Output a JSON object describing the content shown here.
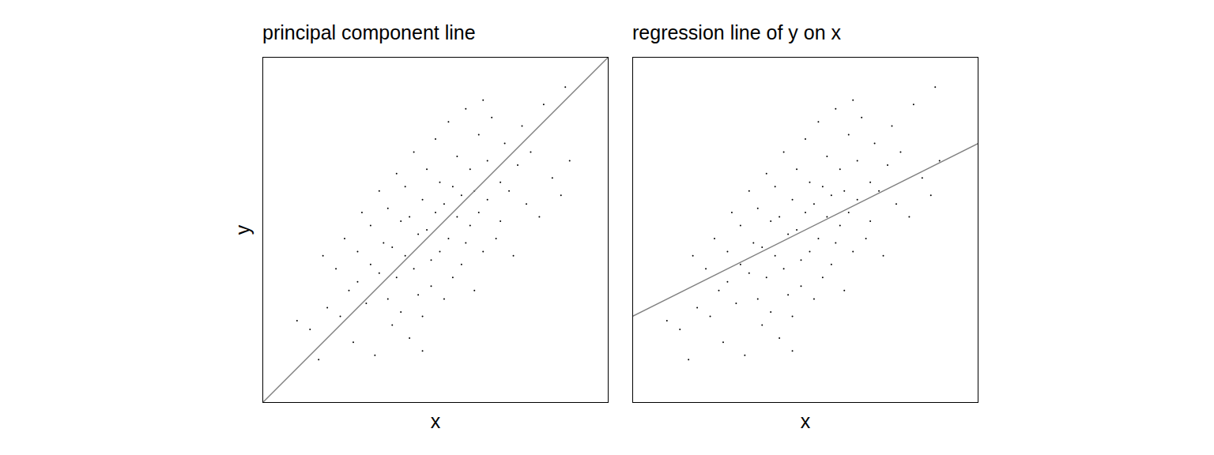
{
  "chart_data": [
    {
      "type": "scatter",
      "title": "principal component line",
      "x_label": "x",
      "y_label": "y",
      "xlim": [
        -4,
        4
      ],
      "ylim": [
        -4,
        4
      ],
      "tick_labels": false,
      "series": [
        {
          "type": "scatter",
          "color": "#000000",
          "x": [
            -3.2,
            -2.9,
            -2.6,
            -2.5,
            -2.3,
            -2.2,
            -2.1,
            -2.0,
            -1.9,
            -1.8,
            -1.8,
            -1.7,
            -1.6,
            -1.5,
            -1.5,
            -1.4,
            -1.3,
            -1.3,
            -1.2,
            -1.1,
            -1.1,
            -1.0,
            -1.0,
            -0.9,
            -0.9,
            -0.8,
            -0.8,
            -0.7,
            -0.7,
            -0.6,
            -0.6,
            -0.5,
            -0.5,
            -0.4,
            -0.4,
            -0.3,
            -0.3,
            -0.2,
            -0.2,
            -0.1,
            -0.1,
            0.0,
            0.0,
            0.1,
            0.1,
            0.2,
            0.2,
            0.3,
            0.3,
            0.4,
            0.4,
            0.5,
            0.5,
            0.6,
            0.6,
            0.7,
            0.7,
            0.8,
            0.8,
            0.9,
            0.9,
            1.0,
            1.0,
            1.1,
            1.2,
            1.2,
            1.3,
            1.4,
            1.5,
            1.5,
            1.6,
            1.7,
            1.8,
            1.9,
            2.0,
            2.1,
            2.2,
            2.4,
            2.5,
            2.7,
            2.9,
            3.1,
            -2.7,
            1.1,
            -0.3,
            3.0
          ],
          "y": [
            -2.1,
            -2.3,
            -0.6,
            -1.8,
            -0.9,
            -2.0,
            -0.2,
            -1.4,
            -2.6,
            -0.5,
            -1.2,
            0.4,
            -1.7,
            -0.8,
            0.1,
            -2.9,
            -1.0,
            0.9,
            -0.3,
            -1.6,
            0.5,
            -2.2,
            -0.4,
            1.3,
            -1.1,
            0.2,
            -1.9,
            -0.6,
            1.0,
            -2.5,
            0.3,
            -0.9,
            1.8,
            -0.1,
            -1.5,
            0.7,
            -2.0,
            0.0,
            1.4,
            -0.7,
            -1.3,
            0.4,
            2.1,
            -0.5,
            1.1,
            -1.6,
            0.6,
            2.5,
            -0.2,
            1.0,
            -1.1,
            0.3,
            1.7,
            -0.8,
            0.8,
            2.8,
            -0.3,
            1.4,
            0.1,
            -1.4,
            0.9,
            2.2,
            0.4,
            -0.5,
            1.6,
            0.7,
            2.6,
            -0.2,
            1.1,
            0.2,
            2.0,
            0.9,
            -0.6,
            1.5,
            2.4,
            0.6,
            1.8,
            0.3,
            2.9,
            1.2,
            0.8,
            1.6,
            -3.0,
            3.0,
            -2.8,
            3.3
          ]
        },
        {
          "type": "line",
          "color": "#808080",
          "x": [
            -4,
            4
          ],
          "y": [
            -4,
            4
          ]
        }
      ]
    },
    {
      "type": "scatter",
      "title": "regression line of y on x",
      "x_label": "x",
      "xlim": [
        -4,
        4
      ],
      "ylim": [
        -4,
        4
      ],
      "tick_labels": false,
      "series": [
        {
          "type": "scatter",
          "color": "#000000",
          "x": [
            -3.2,
            -2.9,
            -2.6,
            -2.5,
            -2.3,
            -2.2,
            -2.1,
            -2.0,
            -1.9,
            -1.8,
            -1.8,
            -1.7,
            -1.6,
            -1.5,
            -1.5,
            -1.4,
            -1.3,
            -1.3,
            -1.2,
            -1.1,
            -1.1,
            -1.0,
            -1.0,
            -0.9,
            -0.9,
            -0.8,
            -0.8,
            -0.7,
            -0.7,
            -0.6,
            -0.6,
            -0.5,
            -0.5,
            -0.4,
            -0.4,
            -0.3,
            -0.3,
            -0.2,
            -0.2,
            -0.1,
            -0.1,
            0.0,
            0.0,
            0.1,
            0.1,
            0.2,
            0.2,
            0.3,
            0.3,
            0.4,
            0.4,
            0.5,
            0.5,
            0.6,
            0.6,
            0.7,
            0.7,
            0.8,
            0.8,
            0.9,
            0.9,
            1.0,
            1.0,
            1.1,
            1.2,
            1.2,
            1.3,
            1.4,
            1.5,
            1.5,
            1.6,
            1.7,
            1.8,
            1.9,
            2.0,
            2.1,
            2.2,
            2.4,
            2.5,
            2.7,
            2.9,
            3.1,
            -2.7,
            1.1,
            -0.3,
            3.0
          ],
          "y": [
            -2.1,
            -2.3,
            -0.6,
            -1.8,
            -0.9,
            -2.0,
            -0.2,
            -1.4,
            -2.6,
            -0.5,
            -1.2,
            0.4,
            -1.7,
            -0.8,
            0.1,
            -2.9,
            -1.0,
            0.9,
            -0.3,
            -1.6,
            0.5,
            -2.2,
            -0.4,
            1.3,
            -1.1,
            0.2,
            -1.9,
            -0.6,
            1.0,
            -2.5,
            0.3,
            -0.9,
            1.8,
            -0.1,
            -1.5,
            0.7,
            -2.0,
            0.0,
            1.4,
            -0.7,
            -1.3,
            0.4,
            2.1,
            -0.5,
            1.1,
            -1.6,
            0.6,
            2.5,
            -0.2,
            1.0,
            -1.1,
            0.3,
            1.7,
            -0.8,
            0.8,
            2.8,
            -0.3,
            1.4,
            0.1,
            -1.4,
            0.9,
            2.2,
            0.4,
            -0.5,
            1.6,
            0.7,
            2.6,
            -0.2,
            1.1,
            0.2,
            2.0,
            0.9,
            -0.6,
            1.5,
            2.4,
            0.6,
            1.8,
            0.3,
            2.9,
            1.2,
            0.8,
            1.6,
            -3.0,
            3.0,
            -2.8,
            3.3
          ]
        },
        {
          "type": "line",
          "color": "#808080",
          "x": [
            -4,
            4
          ],
          "y": [
            -2,
            2
          ]
        }
      ]
    }
  ]
}
